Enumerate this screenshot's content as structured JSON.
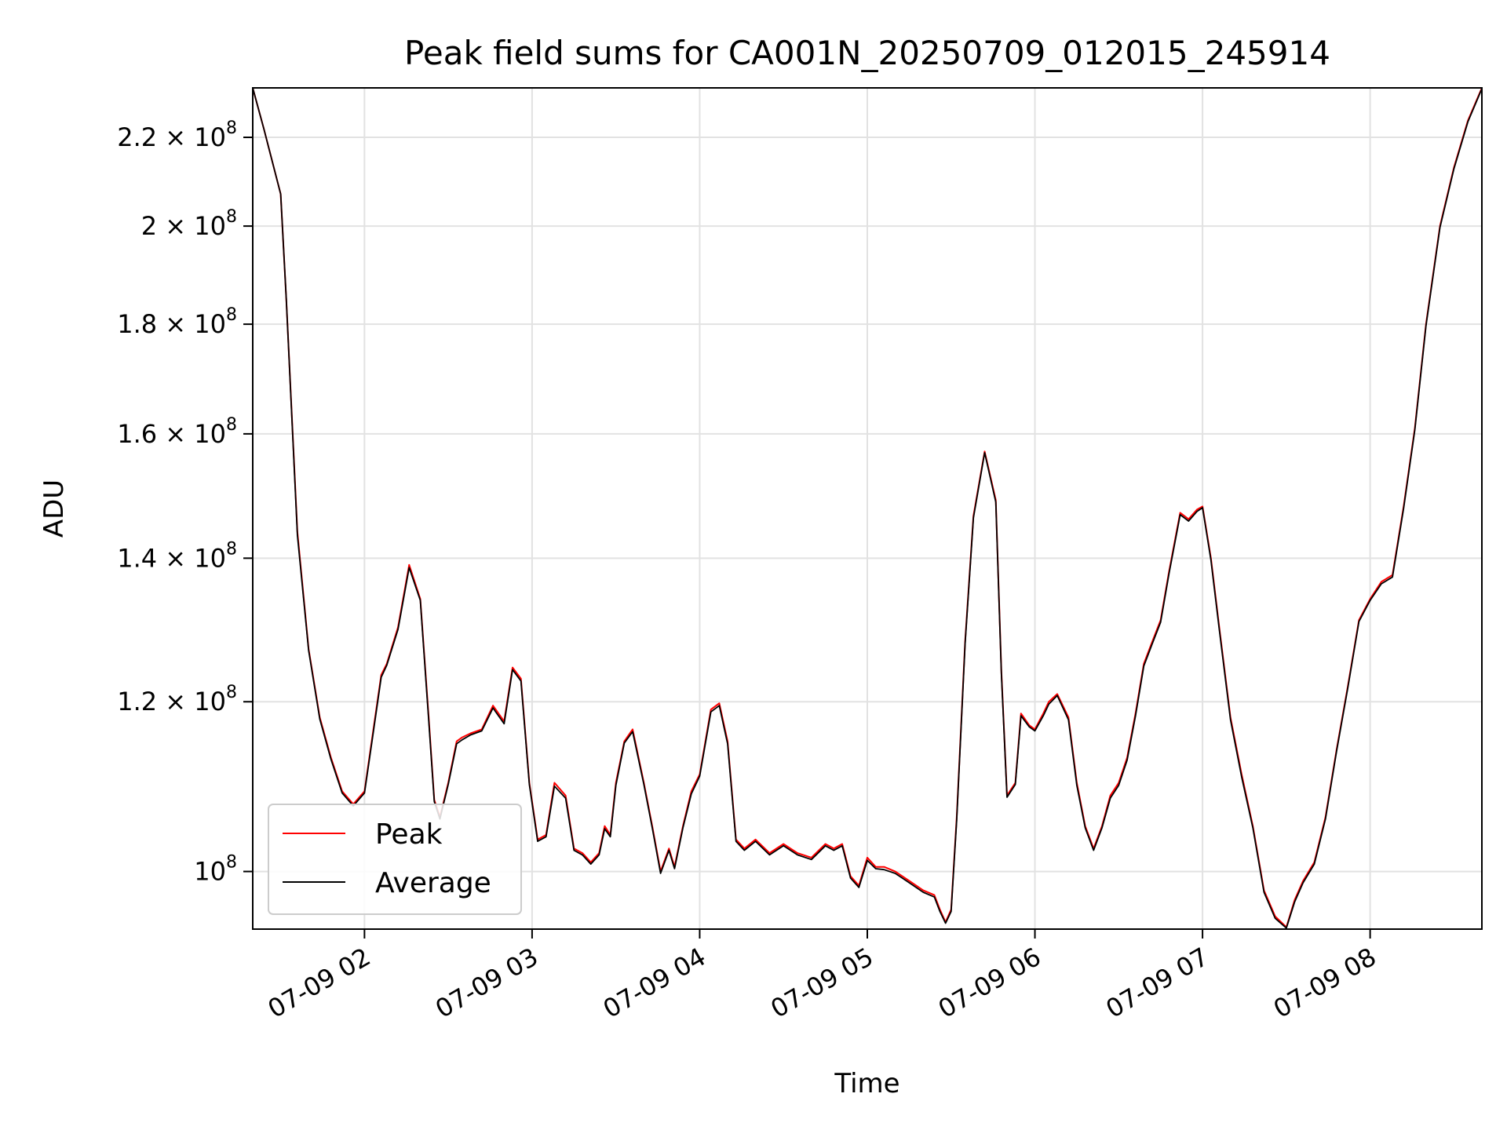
{
  "chart_data": {
    "type": "line",
    "title": "Peak field sums for CA001N_20250709_012015_245914",
    "xlabel": "Time",
    "ylabel": "ADU",
    "yscale": "log",
    "grid": true,
    "legend_placement": "lower-left",
    "xlim": [
      "07-09 01:20",
      "07-09 08:40"
    ],
    "ylim": [
      94000000,
      232000000
    ],
    "x_ticks": [
      "07-09 02",
      "07-09 03",
      "07-09 04",
      "07-09 05",
      "07-09 06",
      "07-09 07",
      "07-09 08"
    ],
    "x_tick_values": [
      "07-09 02:00",
      "07-09 03:00",
      "07-09 04:00",
      "07-09 05:00",
      "07-09 06:00",
      "07-09 07:00",
      "07-09 08:00"
    ],
    "y_ticks": [
      {
        "value": 100000000,
        "mantissa": "",
        "exponent": "8"
      },
      {
        "value": 120000000,
        "mantissa": "1.2",
        "exponent": "8"
      },
      {
        "value": 140000000,
        "mantissa": "1.4",
        "exponent": "8"
      },
      {
        "value": 160000000,
        "mantissa": "1.6",
        "exponent": "8"
      },
      {
        "value": 180000000,
        "mantissa": "1.8",
        "exponent": "8"
      },
      {
        "value": 200000000,
        "mantissa": "2",
        "exponent": "8"
      },
      {
        "value": 220000000,
        "mantissa": "2.2",
        "exponent": "8"
      }
    ],
    "y_tick_base": "10",
    "y_tick_times": "×",
    "series": [
      {
        "name": "Peak",
        "color": "#ff0000"
      },
      {
        "name": "Average",
        "color": "#000000"
      }
    ],
    "x": [
      "07-09 01:20",
      "07-09 01:24",
      "07-09 01:30",
      "07-09 01:32",
      "07-09 01:36",
      "07-09 01:40",
      "07-09 01:44",
      "07-09 01:48",
      "07-09 01:52",
      "07-09 01:56",
      "07-09 02:00",
      "07-09 02:03",
      "07-09 02:06",
      "07-09 02:08",
      "07-09 02:12",
      "07-09 02:16",
      "07-09 02:20",
      "07-09 02:23",
      "07-09 02:25",
      "07-09 02:27",
      "07-09 02:30",
      "07-09 02:33",
      "07-09 02:35",
      "07-09 02:38",
      "07-09 02:42",
      "07-09 02:46",
      "07-09 02:50",
      "07-09 02:53",
      "07-09 02:56",
      "07-09 02:59",
      "07-09 03:02",
      "07-09 03:05",
      "07-09 03:08",
      "07-09 03:12",
      "07-09 03:15",
      "07-09 03:18",
      "07-09 03:21",
      "07-09 03:24",
      "07-09 03:26",
      "07-09 03:28",
      "07-09 03:30",
      "07-09 03:33",
      "07-09 03:36",
      "07-09 03:40",
      "07-09 03:43",
      "07-09 03:46",
      "07-09 03:49",
      "07-09 03:51",
      "07-09 03:54",
      "07-09 03:57",
      "07-09 04:00",
      "07-09 04:04",
      "07-09 04:07",
      "07-09 04:10",
      "07-09 04:13",
      "07-09 04:16",
      "07-09 04:20",
      "07-09 04:25",
      "07-09 04:30",
      "07-09 04:35",
      "07-09 04:40",
      "07-09 04:45",
      "07-09 04:48",
      "07-09 04:51",
      "07-09 04:54",
      "07-09 04:57",
      "07-09 05:00",
      "07-09 05:03",
      "07-09 05:06",
      "07-09 05:10",
      "07-09 05:15",
      "07-09 05:20",
      "07-09 05:24",
      "07-09 05:26",
      "07-09 05:28",
      "07-09 05:30",
      "07-09 05:32",
      "07-09 05:35",
      "07-09 05:38",
      "07-09 05:42",
      "07-09 05:46",
      "07-09 05:48",
      "07-09 05:50",
      "07-09 05:53",
      "07-09 05:55",
      "07-09 05:58",
      "07-09 06:00",
      "07-09 06:03",
      "07-09 06:05",
      "07-09 06:08",
      "07-09 06:12",
      "07-09 06:15",
      "07-09 06:18",
      "07-09 06:21",
      "07-09 06:24",
      "07-09 06:27",
      "07-09 06:30",
      "07-09 06:33",
      "07-09 06:36",
      "07-09 06:39",
      "07-09 06:42",
      "07-09 06:45",
      "07-09 06:48",
      "07-09 06:52",
      "07-09 06:55",
      "07-09 06:58",
      "07-09 07:00",
      "07-09 07:03",
      "07-09 07:06",
      "07-09 07:10",
      "07-09 07:14",
      "07-09 07:18",
      "07-09 07:22",
      "07-09 07:26",
      "07-09 07:30",
      "07-09 07:33",
      "07-09 07:36",
      "07-09 07:40",
      "07-09 07:44",
      "07-09 07:48",
      "07-09 07:52",
      "07-09 07:56",
      "07-09 08:00",
      "07-09 08:04",
      "07-09 08:08",
      "07-09 08:12",
      "07-09 08:16",
      "07-09 08:20",
      "07-09 08:25",
      "07-09 08:30",
      "07-09 08:35",
      "07-09 08:40"
    ],
    "peak": [
      232000000,
      222000000,
      207000000,
      185000000,
      144000000,
      127000000,
      118000000,
      113000000,
      109000000,
      107500000,
      109000000,
      116000000,
      123500000,
      125000000,
      130000000,
      139000000,
      134000000,
      118000000,
      108000000,
      106000000,
      110000000,
      115000000,
      115500000,
      116000000,
      116500000,
      119500000,
      117500000,
      124500000,
      123000000,
      110000000,
      103500000,
      104000000,
      110000000,
      108500000,
      102500000,
      102000000,
      101000000,
      102000000,
      105000000,
      104000000,
      110000000,
      115000000,
      116500000,
      110000000,
      105000000,
      100000000,
      102500000,
      100500000,
      105000000,
      109000000,
      111000000,
      119000000,
      119800000,
      115000000,
      103500000,
      102500000,
      103500000,
      102000000,
      103000000,
      102000000,
      101500000,
      103000000,
      102500000,
      103000000,
      99500000,
      98500000,
      101500000,
      100500000,
      100500000,
      100000000,
      99000000,
      98000000,
      97500000,
      96000000,
      94700000,
      96000000,
      106000000,
      128000000,
      146500000,
      157000000,
      149000000,
      124000000,
      108500000,
      110000000,
      118500000,
      117000000,
      116500000,
      118500000,
      120000000,
      121000000,
      118000000,
      110000000,
      105000000,
      102500000,
      105000000,
      108500000,
      110000000,
      113000000,
      118500000,
      125000000,
      128000000,
      131000000,
      138000000,
      147000000,
      146000000,
      147500000,
      148000000,
      140000000,
      130000000,
      118000000,
      111000000,
      105000000,
      98000000,
      95300000,
      94200000,
      97000000,
      99000000,
      101000000,
      106000000,
      114000000,
      122000000,
      131000000,
      134000000,
      136500000,
      137500000,
      148000000,
      161000000,
      180000000,
      200000000,
      213000000,
      224000000,
      232000000
    ],
    "average": [
      232000000,
      222000000,
      207000000,
      185000000,
      143500000,
      126800000,
      117800000,
      112800000,
      108800000,
      107300000,
      108800000,
      115700000,
      123200000,
      124800000,
      129700000,
      138600000,
      133800000,
      117600000,
      107800000,
      105800000,
      109800000,
      114700000,
      115200000,
      115800000,
      116300000,
      119200000,
      117200000,
      124200000,
      122700000,
      109800000,
      103300000,
      103800000,
      109600000,
      108200000,
      102300000,
      101800000,
      100800000,
      101800000,
      104700000,
      103800000,
      109700000,
      114800000,
      116200000,
      109800000,
      104800000,
      99800000,
      102300000,
      100300000,
      104800000,
      108700000,
      110800000,
      118700000,
      119500000,
      114700000,
      103300000,
      102300000,
      103300000,
      101800000,
      102800000,
      101800000,
      101300000,
      102800000,
      102300000,
      102800000,
      99300000,
      98300000,
      101200000,
      100300000,
      100200000,
      99800000,
      98800000,
      97800000,
      97300000,
      95800000,
      94600000,
      95800000,
      105700000,
      127700000,
      146200000,
      156800000,
      148700000,
      123700000,
      108300000,
      109800000,
      118200000,
      116800000,
      116300000,
      118200000,
      119700000,
      120800000,
      117700000,
      109700000,
      104800000,
      102300000,
      104800000,
      108200000,
      109700000,
      112700000,
      118200000,
      124700000,
      127700000,
      130700000,
      137700000,
      146700000,
      145700000,
      147200000,
      147800000,
      139700000,
      129700000,
      117700000,
      110700000,
      104800000,
      97800000,
      95100000,
      94100000,
      96800000,
      98800000,
      100800000,
      105800000,
      113800000,
      121800000,
      130800000,
      133800000,
      136200000,
      137200000,
      147700000,
      160700000,
      179700000,
      199700000,
      212700000,
      223700000,
      231800000
    ]
  }
}
